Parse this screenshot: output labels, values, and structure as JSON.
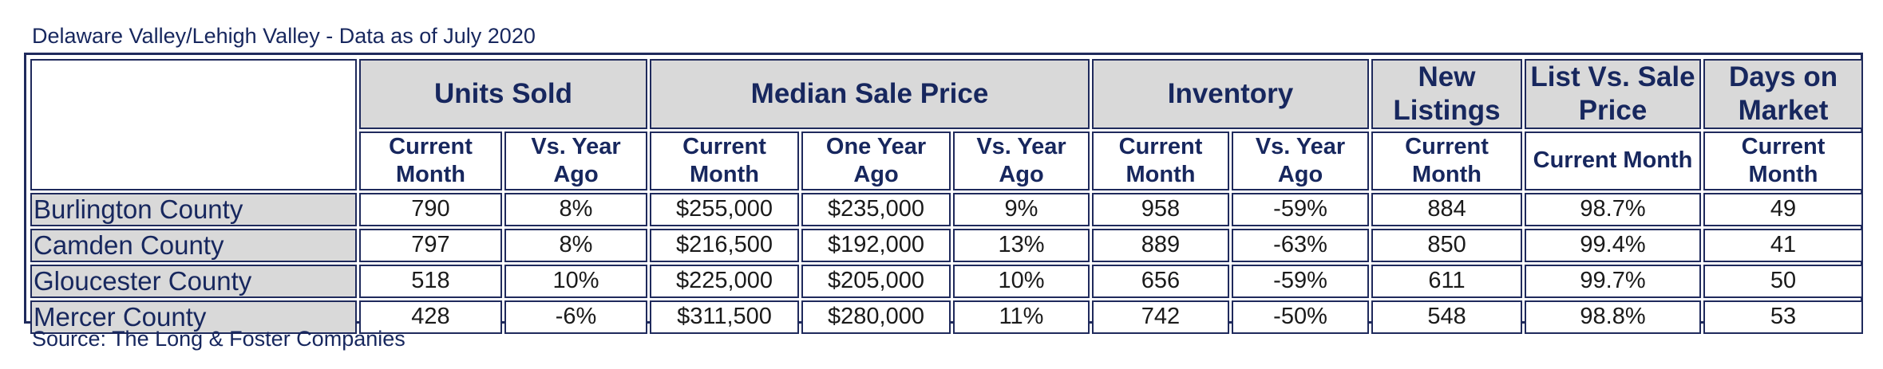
{
  "title": "Delaware Valley/Lehigh Valley - Data as of July 2020",
  "source": "Source: The Long & Foster Companies",
  "groups": {
    "units_sold": "Units Sold",
    "median_sale_price": "Median Sale Price",
    "inventory": "Inventory",
    "new_listings": "New Listings",
    "list_vs_sale": "List Vs. Sale Price",
    "days_on_market": "Days on Market"
  },
  "subheaders": {
    "current_month": "Current Month",
    "vs_year_ago": "Vs. Year Ago",
    "one_year_ago": "One Year Ago"
  },
  "rows": [
    {
      "county": "Burlington County",
      "units_current": "790",
      "units_vs": "8%",
      "price_current": "$255,000",
      "price_year_ago": "$235,000",
      "price_vs": "9%",
      "inv_current": "958",
      "inv_vs": "-59%",
      "new_listings": "884",
      "list_vs_sale": "98.7%",
      "dom": "49"
    },
    {
      "county": "Camden County",
      "units_current": "797",
      "units_vs": "8%",
      "price_current": "$216,500",
      "price_year_ago": "$192,000",
      "price_vs": "13%",
      "inv_current": "889",
      "inv_vs": "-63%",
      "new_listings": "850",
      "list_vs_sale": "99.4%",
      "dom": "41"
    },
    {
      "county": "Gloucester County",
      "units_current": "518",
      "units_vs": "10%",
      "price_current": "$225,000",
      "price_year_ago": "$205,000",
      "price_vs": "10%",
      "inv_current": "656",
      "inv_vs": "-59%",
      "new_listings": "611",
      "list_vs_sale": "99.7%",
      "dom": "50"
    },
    {
      "county": "Mercer County",
      "units_current": "428",
      "units_vs": "-6%",
      "price_current": "$311,500",
      "price_year_ago": "$280,000",
      "price_vs": "11%",
      "inv_current": "742",
      "inv_vs": "-50%",
      "new_listings": "548",
      "list_vs_sale": "98.8%",
      "dom": "53"
    }
  ],
  "colors": {
    "header_fill": "#d9d9d9",
    "border": "#1f2a5c",
    "header_text": "#17275e"
  }
}
